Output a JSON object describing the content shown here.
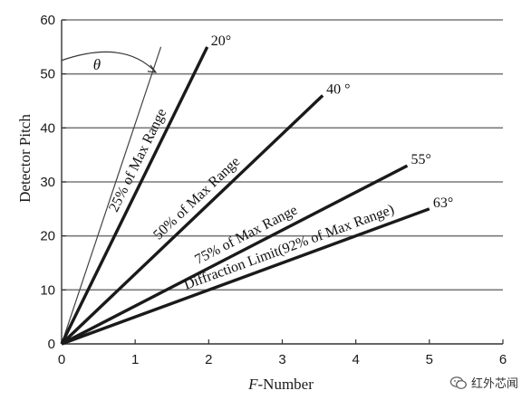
{
  "chart_data": {
    "type": "line",
    "xlabel_italic": "F",
    "xlabel_rest": "-Number",
    "ylabel": "Detector Pitch",
    "xlim": [
      0,
      6
    ],
    "ylim": [
      0,
      60
    ],
    "x_ticks": [
      "0",
      "1",
      "2",
      "3",
      "4",
      "5",
      "6"
    ],
    "y_ticks": [
      "0",
      "10",
      "20",
      "30",
      "40",
      "50",
      "60"
    ],
    "grid": "horizontal",
    "reference_line": {
      "x": [
        0,
        1.35
      ],
      "y": [
        0,
        55
      ]
    },
    "angle_symbol": "θ",
    "series": [
      {
        "label": "25% of Max Range",
        "angle": "20°",
        "x": [
          0,
          1.98
        ],
        "y": [
          0,
          55
        ]
      },
      {
        "label": "50% of Max Range",
        "angle": "40 °",
        "x": [
          0,
          3.55
        ],
        "y": [
          0,
          46
        ]
      },
      {
        "label": "75% of Max Range",
        "angle": "55°",
        "x": [
          0,
          4.7
        ],
        "y": [
          0,
          33
        ]
      },
      {
        "label": "Diffraction Limit(92% of Max Range)",
        "angle": "63°",
        "x": [
          0,
          5.0
        ],
        "y": [
          0,
          25
        ]
      }
    ]
  },
  "watermark": {
    "text": "红外芯闻",
    "icon": "wechat-icon"
  }
}
